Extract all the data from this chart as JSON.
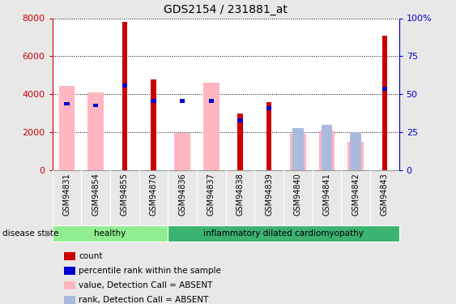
{
  "title": "GDS2154 / 231881_at",
  "samples": [
    "GSM94831",
    "GSM94854",
    "GSM94855",
    "GSM94870",
    "GSM94836",
    "GSM94837",
    "GSM94838",
    "GSM94839",
    "GSM94840",
    "GSM94841",
    "GSM94842",
    "GSM94843"
  ],
  "count_values": [
    0,
    0,
    7800,
    4800,
    0,
    0,
    2980,
    3600,
    0,
    0,
    0,
    7100
  ],
  "percentile_values": [
    45,
    44,
    57,
    47,
    47,
    47,
    34,
    42,
    0,
    0,
    0,
    55
  ],
  "absent_value_bars": [
    4450,
    4100,
    0,
    0,
    1950,
    4600,
    0,
    0,
    1900,
    2100,
    1500,
    0
  ],
  "absent_rank_bars": [
    0,
    0,
    0,
    0,
    0,
    0,
    0,
    0,
    28,
    30,
    25,
    0
  ],
  "groups": [
    {
      "label": "healthy",
      "start": 0,
      "end": 4,
      "color": "#90EE90"
    },
    {
      "label": "inflammatory dilated cardiomyopathy",
      "start": 4,
      "end": 12,
      "color": "#3CB371"
    }
  ],
  "ylim_left": [
    0,
    8000
  ],
  "ylim_right": [
    0,
    100
  ],
  "yticks_left": [
    0,
    2000,
    4000,
    6000,
    8000
  ],
  "yticks_right": [
    0,
    25,
    50,
    75,
    100
  ],
  "left_axis_color": "#CC0000",
  "right_axis_color": "#0000CC",
  "count_color": "#CC0000",
  "percentile_color": "#0000CC",
  "absent_value_color": "#FFB6C1",
  "absent_rank_color": "#AABBDD",
  "background_color": "#e8e8e8",
  "plot_bg_color": "#ffffff",
  "xtick_bg_color": "#cccccc",
  "legend_items": [
    {
      "label": "count",
      "color": "#CC0000"
    },
    {
      "label": "percentile rank within the sample",
      "color": "#0000CC"
    },
    {
      "label": "value, Detection Call = ABSENT",
      "color": "#FFB6C1"
    },
    {
      "label": "rank, Detection Call = ABSENT",
      "color": "#AABBDD"
    }
  ]
}
